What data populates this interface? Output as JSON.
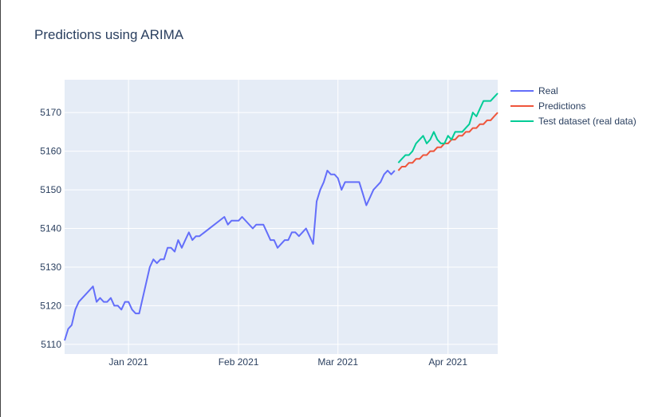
{
  "chart_data": {
    "type": "line",
    "title": "Predictions using ARIMA",
    "xlabel": "",
    "ylabel": "",
    "xlim": [
      "2020-12-14",
      "2021-04-15"
    ],
    "ylim": [
      5107.5,
      5178.5
    ],
    "grid": true,
    "legend_position": "right",
    "x_ticks": [
      {
        "date": "2021-01-01",
        "label": "Jan 2021"
      },
      {
        "date": "2021-02-01",
        "label": "Feb 2021"
      },
      {
        "date": "2021-03-01",
        "label": "Mar 2021"
      },
      {
        "date": "2021-04-01",
        "label": "Apr 2021"
      }
    ],
    "y_ticks": [
      {
        "value": 5110,
        "label": "5110"
      },
      {
        "value": 5120,
        "label": "5120"
      },
      {
        "value": 5130,
        "label": "5130"
      },
      {
        "value": 5140,
        "label": "5140"
      },
      {
        "value": 5150,
        "label": "5150"
      },
      {
        "value": 5160,
        "label": "5160"
      },
      {
        "value": 5170,
        "label": "5170"
      }
    ],
    "series": [
      {
        "name": "Real",
        "color": "#636efa",
        "points": [
          [
            "2020-12-14",
            5111
          ],
          [
            "2020-12-15",
            5114
          ],
          [
            "2020-12-16",
            5115
          ],
          [
            "2020-12-17",
            5119
          ],
          [
            "2020-12-18",
            5121
          ],
          [
            "2020-12-21",
            5124
          ],
          [
            "2020-12-22",
            5125
          ],
          [
            "2020-12-23",
            5121
          ],
          [
            "2020-12-24",
            5122
          ],
          [
            "2020-12-25",
            5121
          ],
          [
            "2020-12-26",
            5121
          ],
          [
            "2020-12-27",
            5122
          ],
          [
            "2020-12-28",
            5120
          ],
          [
            "2020-12-29",
            5120
          ],
          [
            "2020-12-30",
            5119
          ],
          [
            "2020-12-31",
            5121
          ],
          [
            "2021-01-01",
            5121
          ],
          [
            "2021-01-02",
            5119
          ],
          [
            "2021-01-03",
            5118
          ],
          [
            "2021-01-04",
            5118
          ],
          [
            "2021-01-07",
            5130
          ],
          [
            "2021-01-08",
            5132
          ],
          [
            "2021-01-09",
            5131
          ],
          [
            "2021-01-10",
            5132
          ],
          [
            "2021-01-11",
            5132
          ],
          [
            "2021-01-12",
            5135
          ],
          [
            "2021-01-13",
            5135
          ],
          [
            "2021-01-14",
            5134
          ],
          [
            "2021-01-15",
            5137
          ],
          [
            "2021-01-16",
            5135
          ],
          [
            "2021-01-17",
            5137
          ],
          [
            "2021-01-18",
            5139
          ],
          [
            "2021-01-19",
            5137
          ],
          [
            "2021-01-20",
            5138
          ],
          [
            "2021-01-21",
            5138
          ],
          [
            "2021-01-28",
            5143
          ],
          [
            "2021-01-29",
            5141
          ],
          [
            "2021-01-30",
            5142
          ],
          [
            "2021-01-31",
            5142
          ],
          [
            "2021-02-01",
            5142
          ],
          [
            "2021-02-02",
            5143
          ],
          [
            "2021-02-05",
            5140
          ],
          [
            "2021-02-06",
            5141
          ],
          [
            "2021-02-08",
            5141
          ],
          [
            "2021-02-09",
            5139
          ],
          [
            "2021-02-10",
            5137
          ],
          [
            "2021-02-11",
            5137
          ],
          [
            "2021-02-12",
            5135
          ],
          [
            "2021-02-13",
            5136
          ],
          [
            "2021-02-14",
            5137
          ],
          [
            "2021-02-15",
            5137
          ],
          [
            "2021-02-16",
            5139
          ],
          [
            "2021-02-17",
            5139
          ],
          [
            "2021-02-18",
            5138
          ],
          [
            "2021-02-20",
            5140
          ],
          [
            "2021-02-22",
            5136
          ],
          [
            "2021-02-23",
            5147
          ],
          [
            "2021-02-24",
            5150
          ],
          [
            "2021-02-25",
            5152
          ],
          [
            "2021-02-26",
            5155
          ],
          [
            "2021-02-27",
            5154
          ],
          [
            "2021-02-28",
            5154
          ],
          [
            "2021-03-01",
            5153
          ],
          [
            "2021-03-02",
            5150
          ],
          [
            "2021-03-03",
            5152
          ],
          [
            "2021-03-05",
            5152
          ],
          [
            "2021-03-06",
            5152
          ],
          [
            "2021-03-07",
            5152
          ],
          [
            "2021-03-08",
            5149
          ],
          [
            "2021-03-09",
            5146
          ],
          [
            "2021-03-10",
            5148
          ],
          [
            "2021-03-11",
            5150
          ],
          [
            "2021-03-12",
            5151
          ],
          [
            "2021-03-13",
            5152
          ],
          [
            "2021-03-14",
            5154
          ],
          [
            "2021-03-15",
            5155
          ],
          [
            "2021-03-16",
            5154
          ],
          [
            "2021-03-17",
            5155
          ]
        ]
      },
      {
        "name": "Predictions",
        "color": "#ef553b",
        "points": [
          [
            "2021-03-18",
            5155
          ],
          [
            "2021-03-19",
            5156
          ],
          [
            "2021-03-20",
            5156
          ],
          [
            "2021-03-21",
            5157
          ],
          [
            "2021-03-22",
            5157
          ],
          [
            "2021-03-23",
            5158
          ],
          [
            "2021-03-24",
            5158
          ],
          [
            "2021-03-25",
            5159
          ],
          [
            "2021-03-26",
            5159
          ],
          [
            "2021-03-27",
            5160
          ],
          [
            "2021-03-28",
            5160
          ],
          [
            "2021-03-29",
            5161
          ],
          [
            "2021-03-30",
            5161
          ],
          [
            "2021-03-31",
            5162
          ],
          [
            "2021-04-01",
            5162
          ],
          [
            "2021-04-02",
            5163
          ],
          [
            "2021-04-03",
            5163
          ],
          [
            "2021-04-04",
            5164
          ],
          [
            "2021-04-05",
            5164
          ],
          [
            "2021-04-06",
            5165
          ],
          [
            "2021-04-07",
            5165
          ],
          [
            "2021-04-08",
            5166
          ],
          [
            "2021-04-09",
            5166
          ],
          [
            "2021-04-10",
            5167
          ],
          [
            "2021-04-11",
            5167
          ],
          [
            "2021-04-12",
            5168
          ],
          [
            "2021-04-13",
            5168
          ],
          [
            "2021-04-14",
            5169
          ],
          [
            "2021-04-15",
            5170
          ]
        ]
      },
      {
        "name": "Test dataset (real data)",
        "color": "#00cc96",
        "points": [
          [
            "2021-03-18",
            5157
          ],
          [
            "2021-03-19",
            5158
          ],
          [
            "2021-03-20",
            5159
          ],
          [
            "2021-03-21",
            5159
          ],
          [
            "2021-03-22",
            5160
          ],
          [
            "2021-03-23",
            5162
          ],
          [
            "2021-03-24",
            5163
          ],
          [
            "2021-03-25",
            5164
          ],
          [
            "2021-03-26",
            5162
          ],
          [
            "2021-03-27",
            5163
          ],
          [
            "2021-03-28",
            5165
          ],
          [
            "2021-03-29",
            5163
          ],
          [
            "2021-03-30",
            5162
          ],
          [
            "2021-03-31",
            5162
          ],
          [
            "2021-04-01",
            5164
          ],
          [
            "2021-04-02",
            5163
          ],
          [
            "2021-04-03",
            5165
          ],
          [
            "2021-04-04",
            5165
          ],
          [
            "2021-04-05",
            5165
          ],
          [
            "2021-04-06",
            5166
          ],
          [
            "2021-04-07",
            5167
          ],
          [
            "2021-04-08",
            5170
          ],
          [
            "2021-04-09",
            5169
          ],
          [
            "2021-04-10",
            5171
          ],
          [
            "2021-04-11",
            5173
          ],
          [
            "2021-04-12",
            5173
          ],
          [
            "2021-04-13",
            5173
          ],
          [
            "2021-04-14",
            5174
          ],
          [
            "2021-04-15",
            5175
          ]
        ]
      }
    ]
  }
}
